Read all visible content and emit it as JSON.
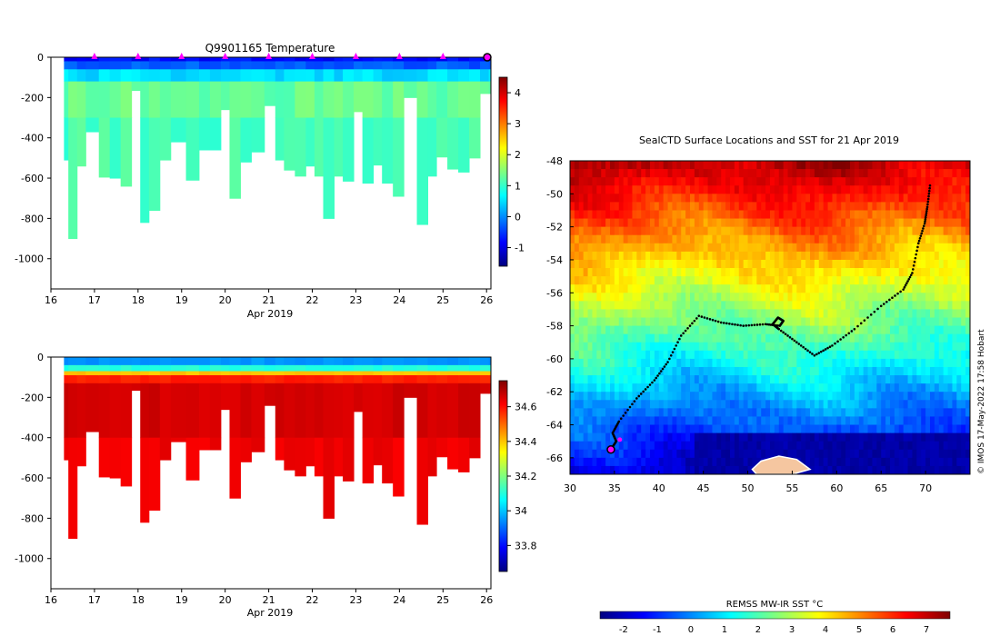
{
  "chart_data": [
    {
      "id": "temp",
      "type": "heatmap",
      "title": "Q9901165  Temperature",
      "xlabel": "Apr 2019",
      "ylabel": "",
      "x_ticks": [
        "16",
        "17",
        "18",
        "19",
        "20",
        "21",
        "22",
        "23",
        "24",
        "25",
        "26"
      ],
      "x_range": [
        16,
        26.1
      ],
      "y_ticks": [
        "0",
        "-200",
        "-400",
        "-600",
        "-800",
        "-1000"
      ],
      "y_range": [
        -1150,
        0
      ],
      "colorbar_ticks": [
        "-1",
        "0",
        "1",
        "2",
        "3",
        "4"
      ],
      "colorbar_range": [
        -1.6,
        4.5
      ],
      "surface_markers": [
        17,
        18,
        19,
        20,
        21,
        22,
        23,
        24,
        25
      ],
      "profile_depths": [
        [
          16.3,
          510
        ],
        [
          16.4,
          900
        ],
        [
          16.6,
          540
        ],
        [
          16.8,
          370
        ],
        [
          17.1,
          595
        ],
        [
          17.35,
          600
        ],
        [
          17.6,
          640
        ],
        [
          17.85,
          165
        ],
        [
          18.05,
          820
        ],
        [
          18.25,
          760
        ],
        [
          18.5,
          510
        ],
        [
          18.75,
          420
        ],
        [
          19.1,
          610
        ],
        [
          19.4,
          460
        ],
        [
          19.65,
          460
        ],
        [
          19.9,
          260
        ],
        [
          20.1,
          700
        ],
        [
          20.35,
          520
        ],
        [
          20.6,
          470
        ],
        [
          20.9,
          240
        ],
        [
          21.15,
          510
        ],
        [
          21.35,
          560
        ],
        [
          21.6,
          590
        ],
        [
          21.85,
          540
        ],
        [
          22.05,
          590
        ],
        [
          22.25,
          800
        ],
        [
          22.5,
          590
        ],
        [
          22.7,
          615
        ],
        [
          22.95,
          270
        ],
        [
          23.15,
          625
        ],
        [
          23.4,
          535
        ],
        [
          23.6,
          625
        ],
        [
          23.85,
          690
        ],
        [
          24.1,
          200
        ],
        [
          24.4,
          830
        ],
        [
          24.65,
          590
        ],
        [
          24.85,
          495
        ],
        [
          25.1,
          555
        ],
        [
          25.35,
          570
        ],
        [
          25.6,
          500
        ],
        [
          25.85,
          180
        ],
        [
          26.05,
          180
        ]
      ],
      "layers": [
        {
          "from": 0,
          "to": 20,
          "value": -0.8
        },
        {
          "from": 20,
          "to": 60,
          "value": -0.3
        },
        {
          "from": 60,
          "to": 120,
          "value": 0.5
        },
        {
          "from": 120,
          "to": 300,
          "value": 1.3
        },
        {
          "from": 300,
          "to": 1000,
          "value": 1.1
        }
      ]
    },
    {
      "id": "sal",
      "type": "heatmap",
      "title": "",
      "xlabel": "Apr 2019",
      "ylabel": "",
      "x_ticks": [
        "16",
        "17",
        "18",
        "19",
        "20",
        "21",
        "22",
        "23",
        "24",
        "25",
        "26"
      ],
      "x_range": [
        16,
        26.1
      ],
      "y_ticks": [
        "0",
        "-200",
        "-400",
        "-600",
        "-800",
        "-1000"
      ],
      "y_range": [
        -1150,
        0
      ],
      "colorbar_ticks": [
        "33.8",
        "34",
        "34.2",
        "34.4",
        "34.6"
      ],
      "colorbar_range": [
        33.65,
        34.75
      ],
      "layers": [
        {
          "from": 0,
          "to": 40,
          "value": 33.95
        },
        {
          "from": 40,
          "to": 70,
          "value": 34.1
        },
        {
          "from": 70,
          "to": 90,
          "value": 34.4
        },
        {
          "from": 90,
          "to": 130,
          "value": 34.58
        },
        {
          "from": 130,
          "to": 400,
          "value": 34.66
        },
        {
          "from": 400,
          "to": 1000,
          "value": 34.63
        }
      ]
    },
    {
      "id": "map",
      "type": "heatmap",
      "title": "SealCTD Surface Locations and SST for 21 Apr 2019",
      "xlabel": "",
      "ylabel": "",
      "x_ticks": [
        "30",
        "35",
        "40",
        "45",
        "50",
        "55",
        "60",
        "65",
        "70"
      ],
      "x_range": [
        30,
        75
      ],
      "y_ticks": [
        "-48",
        "-50",
        "-52",
        "-54",
        "-56",
        "-58",
        "-60",
        "-62",
        "-64",
        "-66"
      ],
      "y_range": [
        -67,
        -48
      ],
      "colorbar_label": "REMSS MW-IR SST °C",
      "colorbar_ticks": [
        "-2",
        "-1",
        "0",
        "1",
        "2",
        "3",
        "4",
        "5",
        "6",
        "7"
      ],
      "colorbar_range": [
        -2.7,
        7.7
      ],
      "track": [
        [
          70.5,
          -49.5
        ],
        [
          70.2,
          -50.8
        ],
        [
          69.9,
          -51.8
        ],
        [
          69.2,
          -53.0
        ],
        [
          68.5,
          -54.8
        ],
        [
          67.5,
          -55.8
        ],
        [
          65.0,
          -56.8
        ],
        [
          62.0,
          -58.2
        ],
        [
          59.5,
          -59.2
        ],
        [
          57.5,
          -59.8
        ],
        [
          55.5,
          -59.0
        ],
        [
          53.5,
          -58.2
        ],
        [
          52.8,
          -57.9
        ],
        [
          53.4,
          -57.5
        ],
        [
          54.0,
          -57.7
        ],
        [
          53.6,
          -58.0
        ],
        [
          52.0,
          -57.9
        ],
        [
          49.5,
          -58.0
        ],
        [
          47.0,
          -57.8
        ],
        [
          44.5,
          -57.4
        ],
        [
          42.5,
          -58.6
        ],
        [
          41.0,
          -60.2
        ],
        [
          39.5,
          -61.3
        ],
        [
          37.5,
          -62.4
        ],
        [
          35.5,
          -63.8
        ],
        [
          34.8,
          -64.5
        ],
        [
          35.2,
          -65.0
        ],
        [
          34.6,
          -65.5
        ]
      ],
      "land": [
        [
          50.5,
          -66.7
        ],
        [
          51.5,
          -66.2
        ],
        [
          53.5,
          -65.9
        ],
        [
          55.5,
          -66.1
        ],
        [
          57.0,
          -66.7
        ],
        [
          55.0,
          -67.0
        ],
        [
          51.0,
          -67.0
        ]
      ],
      "credit": "© IMOS 17-May-2022 17:58 Hobart"
    }
  ],
  "colors": {
    "jet": [
      "#00007f",
      "#0000ff",
      "#007fff",
      "#00ffff",
      "#7fff7f",
      "#ffff00",
      "#ff7f00",
      "#ff0000",
      "#7f0000"
    ],
    "marker": "#ff00ff",
    "track": "#000000",
    "land": "#f5c6a0"
  }
}
